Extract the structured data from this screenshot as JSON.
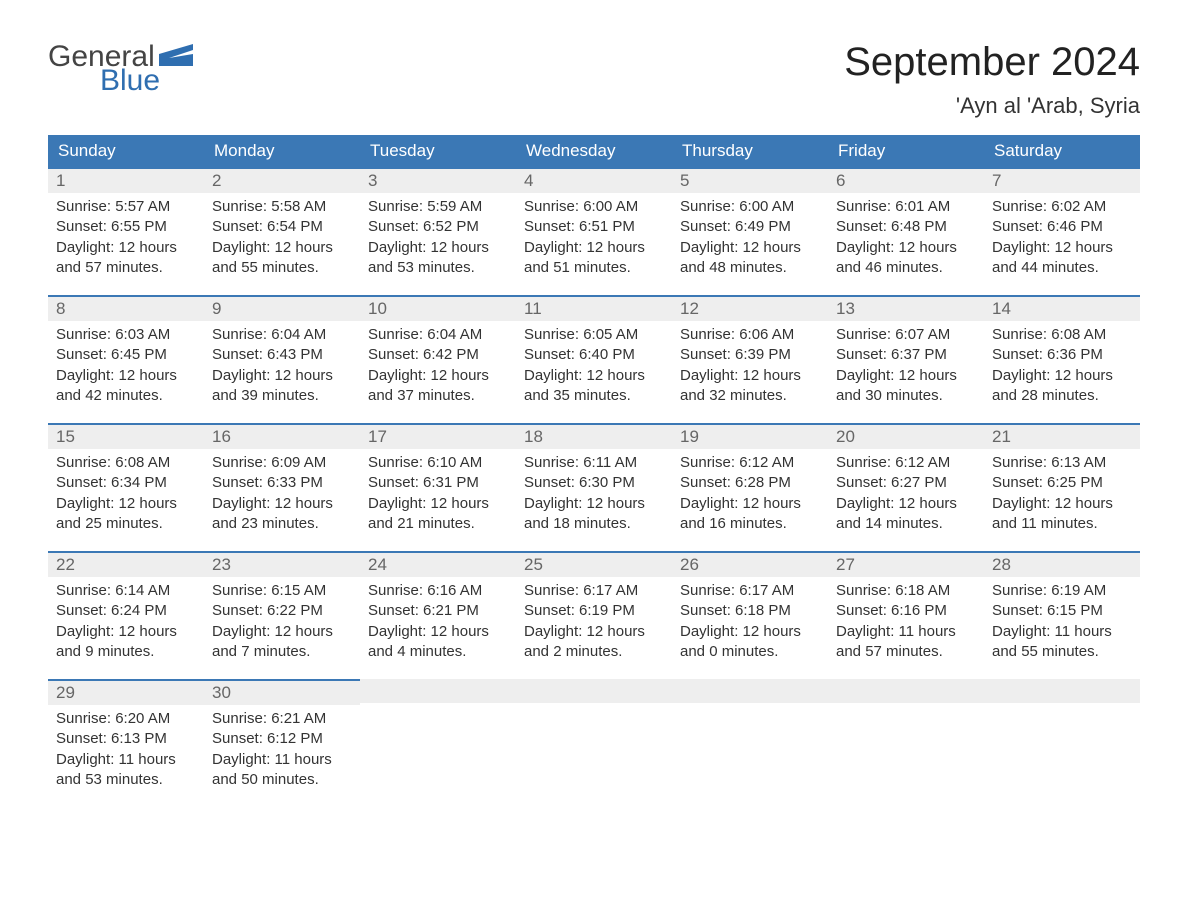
{
  "brand": {
    "word1": "General",
    "word2": "Blue",
    "mark_color": "#2f6eb0",
    "text_gray": "#444444"
  },
  "title": "September 2024",
  "location": "'Ayn al 'Arab, Syria",
  "colors": {
    "header_bg": "#3b78b5",
    "header_text": "#ffffff",
    "daynum_bg": "#eeeeee",
    "daynum_text": "#666666",
    "cell_border_top": "#3b78b5",
    "body_text": "#333333",
    "page_bg": "#ffffff"
  },
  "layout": {
    "columns": 7,
    "rows": 5,
    "font_family": "Arial",
    "title_fontsize": 40,
    "location_fontsize": 22,
    "header_fontsize": 17,
    "daynum_fontsize": 17,
    "body_fontsize": 15
  },
  "weekday_labels": [
    "Sunday",
    "Monday",
    "Tuesday",
    "Wednesday",
    "Thursday",
    "Friday",
    "Saturday"
  ],
  "labels": {
    "sunrise": "Sunrise:",
    "sunset": "Sunset:",
    "daylight": "Daylight:"
  },
  "weeks": [
    [
      {
        "n": "1",
        "sunrise": "5:57 AM",
        "sunset": "6:55 PM",
        "daylight1": "12 hours",
        "daylight2": "and 57 minutes."
      },
      {
        "n": "2",
        "sunrise": "5:58 AM",
        "sunset": "6:54 PM",
        "daylight1": "12 hours",
        "daylight2": "and 55 minutes."
      },
      {
        "n": "3",
        "sunrise": "5:59 AM",
        "sunset": "6:52 PM",
        "daylight1": "12 hours",
        "daylight2": "and 53 minutes."
      },
      {
        "n": "4",
        "sunrise": "6:00 AM",
        "sunset": "6:51 PM",
        "daylight1": "12 hours",
        "daylight2": "and 51 minutes."
      },
      {
        "n": "5",
        "sunrise": "6:00 AM",
        "sunset": "6:49 PM",
        "daylight1": "12 hours",
        "daylight2": "and 48 minutes."
      },
      {
        "n": "6",
        "sunrise": "6:01 AM",
        "sunset": "6:48 PM",
        "daylight1": "12 hours",
        "daylight2": "and 46 minutes."
      },
      {
        "n": "7",
        "sunrise": "6:02 AM",
        "sunset": "6:46 PM",
        "daylight1": "12 hours",
        "daylight2": "and 44 minutes."
      }
    ],
    [
      {
        "n": "8",
        "sunrise": "6:03 AM",
        "sunset": "6:45 PM",
        "daylight1": "12 hours",
        "daylight2": "and 42 minutes."
      },
      {
        "n": "9",
        "sunrise": "6:04 AM",
        "sunset": "6:43 PM",
        "daylight1": "12 hours",
        "daylight2": "and 39 minutes."
      },
      {
        "n": "10",
        "sunrise": "6:04 AM",
        "sunset": "6:42 PM",
        "daylight1": "12 hours",
        "daylight2": "and 37 minutes."
      },
      {
        "n": "11",
        "sunrise": "6:05 AM",
        "sunset": "6:40 PM",
        "daylight1": "12 hours",
        "daylight2": "and 35 minutes."
      },
      {
        "n": "12",
        "sunrise": "6:06 AM",
        "sunset": "6:39 PM",
        "daylight1": "12 hours",
        "daylight2": "and 32 minutes."
      },
      {
        "n": "13",
        "sunrise": "6:07 AM",
        "sunset": "6:37 PM",
        "daylight1": "12 hours",
        "daylight2": "and 30 minutes."
      },
      {
        "n": "14",
        "sunrise": "6:08 AM",
        "sunset": "6:36 PM",
        "daylight1": "12 hours",
        "daylight2": "and 28 minutes."
      }
    ],
    [
      {
        "n": "15",
        "sunrise": "6:08 AM",
        "sunset": "6:34 PM",
        "daylight1": "12 hours",
        "daylight2": "and 25 minutes."
      },
      {
        "n": "16",
        "sunrise": "6:09 AM",
        "sunset": "6:33 PM",
        "daylight1": "12 hours",
        "daylight2": "and 23 minutes."
      },
      {
        "n": "17",
        "sunrise": "6:10 AM",
        "sunset": "6:31 PM",
        "daylight1": "12 hours",
        "daylight2": "and 21 minutes."
      },
      {
        "n": "18",
        "sunrise": "6:11 AM",
        "sunset": "6:30 PM",
        "daylight1": "12 hours",
        "daylight2": "and 18 minutes."
      },
      {
        "n": "19",
        "sunrise": "6:12 AM",
        "sunset": "6:28 PM",
        "daylight1": "12 hours",
        "daylight2": "and 16 minutes."
      },
      {
        "n": "20",
        "sunrise": "6:12 AM",
        "sunset": "6:27 PM",
        "daylight1": "12 hours",
        "daylight2": "and 14 minutes."
      },
      {
        "n": "21",
        "sunrise": "6:13 AM",
        "sunset": "6:25 PM",
        "daylight1": "12 hours",
        "daylight2": "and 11 minutes."
      }
    ],
    [
      {
        "n": "22",
        "sunrise": "6:14 AM",
        "sunset": "6:24 PM",
        "daylight1": "12 hours",
        "daylight2": "and 9 minutes."
      },
      {
        "n": "23",
        "sunrise": "6:15 AM",
        "sunset": "6:22 PM",
        "daylight1": "12 hours",
        "daylight2": "and 7 minutes."
      },
      {
        "n": "24",
        "sunrise": "6:16 AM",
        "sunset": "6:21 PM",
        "daylight1": "12 hours",
        "daylight2": "and 4 minutes."
      },
      {
        "n": "25",
        "sunrise": "6:17 AM",
        "sunset": "6:19 PM",
        "daylight1": "12 hours",
        "daylight2": "and 2 minutes."
      },
      {
        "n": "26",
        "sunrise": "6:17 AM",
        "sunset": "6:18 PM",
        "daylight1": "12 hours",
        "daylight2": "and 0 minutes."
      },
      {
        "n": "27",
        "sunrise": "6:18 AM",
        "sunset": "6:16 PM",
        "daylight1": "11 hours",
        "daylight2": "and 57 minutes."
      },
      {
        "n": "28",
        "sunrise": "6:19 AM",
        "sunset": "6:15 PM",
        "daylight1": "11 hours",
        "daylight2": "and 55 minutes."
      }
    ],
    [
      {
        "n": "29",
        "sunrise": "6:20 AM",
        "sunset": "6:13 PM",
        "daylight1": "11 hours",
        "daylight2": "and 53 minutes."
      },
      {
        "n": "30",
        "sunrise": "6:21 AM",
        "sunset": "6:12 PM",
        "daylight1": "11 hours",
        "daylight2": "and 50 minutes."
      },
      null,
      null,
      null,
      null,
      null
    ]
  ]
}
